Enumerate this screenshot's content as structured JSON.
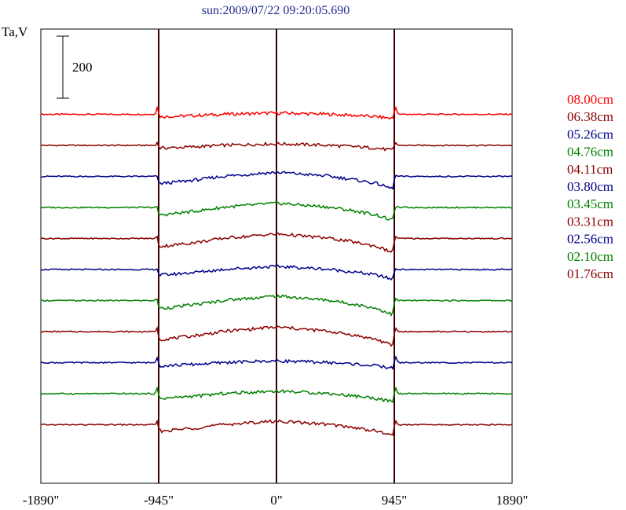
{
  "chart_data": {
    "type": "line",
    "title": "sun:2009/07/22 09:20:05.690",
    "ylabel": "Ta,V",
    "xlabel": "",
    "x_tick_labels": [
      "-1890\"",
      "-945\"",
      "0\"",
      "945\"",
      "1890\""
    ],
    "x_ticks": [
      -1890,
      -945,
      0,
      945,
      1890
    ],
    "xlim": [
      -1890,
      1890
    ],
    "vertical_markers": [
      -945,
      0,
      945
    ],
    "scale_bar": {
      "label": "200",
      "value": 200
    },
    "grid": false,
    "legend_position": "right",
    "trace_shape": {
      "x": [
        -1890,
        -1500,
        -1200,
        -1050,
        -960,
        -945,
        -920,
        -800,
        -600,
        -400,
        -200,
        -100,
        0,
        100,
        200,
        400,
        600,
        800,
        900,
        930,
        945,
        960,
        1000,
        1200,
        1500,
        1890
      ],
      "disk_profile": [
        0,
        0,
        0,
        0,
        0,
        -25,
        -25,
        -20,
        -10,
        2,
        8,
        12,
        14,
        12,
        8,
        2,
        -10,
        -25,
        -40,
        -45,
        -15,
        0,
        0,
        0,
        0,
        0
      ]
    },
    "series": [
      {
        "name": "08.00cm",
        "color": "#ff0000",
        "offset": 1100,
        "disk_amplitude": 0.3,
        "limb_spike": 25
      },
      {
        "name": "06.38cm",
        "color": "#8b0000",
        "offset": 1000,
        "disk_amplitude": 0.35,
        "limb_spike": 10
      },
      {
        "name": "05.26cm",
        "color": "#00008b",
        "offset": 900,
        "disk_amplitude": 0.9,
        "limb_spike": 5
      },
      {
        "name": "04.76cm",
        "color": "#008000",
        "offset": 800,
        "disk_amplitude": 0.95,
        "limb_spike": 5
      },
      {
        "name": "04.11cm",
        "color": "#8b0000",
        "offset": 700,
        "disk_amplitude": 1.0,
        "limb_spike": 10
      },
      {
        "name": "03.80cm",
        "color": "#00008b",
        "offset": 600,
        "disk_amplitude": 0.7,
        "limb_spike": 5
      },
      {
        "name": "03.45cm",
        "color": "#008000",
        "offset": 500,
        "disk_amplitude": 1.0,
        "limb_spike": 10
      },
      {
        "name": "03.31cm",
        "color": "#8b0000",
        "offset": 400,
        "disk_amplitude": 1.0,
        "limb_spike": 15
      },
      {
        "name": "02.56cm",
        "color": "#00008b",
        "offset": 300,
        "disk_amplitude": 0.4,
        "limb_spike": 20
      },
      {
        "name": "02.10cm",
        "color": "#008000",
        "offset": 200,
        "disk_amplitude": 0.6,
        "limb_spike": 20
      },
      {
        "name": "01.76cm",
        "color": "#8b0000",
        "offset": 100,
        "disk_amplitude": 0.8,
        "limb_spike": 15
      }
    ]
  }
}
